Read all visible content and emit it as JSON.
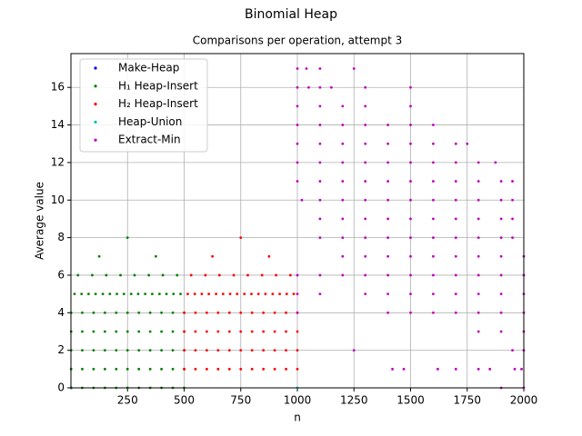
{
  "chart_data": {
    "type": "scatter",
    "title": "Binomial Heap",
    "subtitle": "Comparisons per operation, attempt 3",
    "xlabel": "n",
    "ylabel": "Average value",
    "xlim": [
      0,
      2000
    ],
    "ylim": [
      0,
      17.8
    ],
    "xticks": [
      250,
      500,
      750,
      1000,
      1250,
      1500,
      1750,
      2000
    ],
    "yticks": [
      0,
      2,
      4,
      6,
      8,
      10,
      12,
      14,
      16
    ],
    "grid": true,
    "legend": "upper left",
    "series": [
      {
        "name": "Make-Heap",
        "color": "#0000ff",
        "x": [
          1
        ],
        "values": [
          0
        ]
      },
      {
        "name": "H₁ Heap-Insert",
        "color": "#008000",
        "x": [
          1,
          50,
          100,
          150,
          200,
          250,
          300,
          350,
          400,
          450,
          500,
          1,
          50,
          100,
          150,
          200,
          250,
          300,
          350,
          400,
          450,
          500,
          1,
          50,
          100,
          150,
          200,
          250,
          300,
          350,
          400,
          450,
          500,
          1,
          50,
          100,
          150,
          200,
          250,
          300,
          350,
          400,
          450,
          500,
          1,
          50,
          100,
          150,
          200,
          250,
          300,
          350,
          400,
          450,
          500,
          16,
          47,
          78,
          109,
          141,
          172,
          203,
          234,
          266,
          297,
          328,
          359,
          391,
          422,
          453,
          484,
          31,
          94,
          156,
          219,
          281,
          344,
          406,
          469,
          125,
          375,
          250
        ],
        "values": [
          0,
          0,
          0,
          0,
          0,
          0,
          0,
          0,
          0,
          0,
          0,
          1,
          1,
          1,
          1,
          1,
          1,
          1,
          1,
          1,
          1,
          1,
          2,
          2,
          2,
          2,
          2,
          2,
          2,
          2,
          2,
          2,
          2,
          3,
          3,
          3,
          3,
          3,
          3,
          3,
          3,
          3,
          3,
          3,
          4,
          4,
          4,
          4,
          4,
          4,
          4,
          4,
          4,
          4,
          4,
          5,
          5,
          5,
          5,
          5,
          5,
          5,
          5,
          5,
          5,
          5,
          5,
          5,
          5,
          5,
          5,
          6,
          6,
          6,
          6,
          6,
          6,
          6,
          6,
          7,
          7,
          8
        ]
      },
      {
        "name": "H₂ Heap-Insert",
        "color": "#ff0000",
        "x": [
          501,
          550,
          600,
          650,
          700,
          750,
          800,
          850,
          900,
          950,
          1000,
          501,
          550,
          600,
          650,
          700,
          750,
          800,
          850,
          900,
          950,
          1000,
          501,
          550,
          600,
          650,
          700,
          750,
          800,
          850,
          900,
          950,
          1000,
          501,
          550,
          600,
          650,
          700,
          750,
          800,
          850,
          900,
          950,
          1000,
          516,
          547,
          578,
          609,
          641,
          672,
          703,
          734,
          766,
          797,
          828,
          859,
          891,
          922,
          953,
          984,
          531,
          594,
          656,
          719,
          781,
          844,
          906,
          969,
          625,
          875,
          750
        ],
        "values": [
          1,
          1,
          1,
          1,
          1,
          1,
          1,
          1,
          1,
          1,
          1,
          2,
          2,
          2,
          2,
          2,
          2,
          2,
          2,
          2,
          2,
          2,
          3,
          3,
          3,
          3,
          3,
          3,
          3,
          3,
          3,
          3,
          3,
          4,
          4,
          4,
          4,
          4,
          4,
          4,
          4,
          4,
          4,
          4,
          5,
          5,
          5,
          5,
          5,
          5,
          5,
          5,
          5,
          5,
          5,
          5,
          5,
          5,
          5,
          5,
          6,
          6,
          6,
          6,
          6,
          6,
          6,
          6,
          7,
          7,
          8
        ]
      },
      {
        "name": "Heap-Union",
        "color": "#00bfbf",
        "x": [
          1000
        ],
        "values": [
          0
        ]
      },
      {
        "name": "Extract-Min",
        "color": "#bf00bf",
        "x": [
          1000,
          1040,
          1100,
          1250,
          1000,
          1050,
          1100,
          1150,
          1300,
          1500,
          1000,
          1100,
          1200,
          1300,
          1500,
          1000,
          1100,
          1200,
          1300,
          1400,
          1500,
          1600,
          1000,
          1100,
          1200,
          1300,
          1400,
          1500,
          1600,
          1700,
          1750,
          1000,
          1100,
          1200,
          1300,
          1400,
          1500,
          1600,
          1700,
          1800,
          1875,
          1000,
          1100,
          1200,
          1300,
          1400,
          1500,
          1600,
          1700,
          1800,
          1900,
          1950,
          1020,
          1100,
          1200,
          1300,
          1400,
          1500,
          1600,
          1700,
          1800,
          1900,
          1950,
          1100,
          1200,
          1300,
          1400,
          1500,
          1600,
          1700,
          1800,
          1900,
          1950,
          1100,
          1200,
          1300,
          1400,
          1500,
          1600,
          1700,
          1800,
          1900,
          1950,
          1200,
          1300,
          1400,
          1500,
          1600,
          1700,
          1800,
          1900,
          2000,
          1000,
          1100,
          1200,
          1300,
          1400,
          1500,
          1600,
          1700,
          1800,
          1900,
          2000,
          1000,
          1100,
          1300,
          1400,
          1500,
          1600,
          1700,
          1800,
          1900,
          2000,
          1000,
          1400,
          1500,
          1600,
          1700,
          1800,
          1900,
          2000,
          1800,
          1900,
          2000,
          1250,
          1950,
          2000,
          1420,
          1470,
          1620,
          1700,
          1800,
          1850,
          1960,
          1990,
          1900,
          2000
        ],
        "values": [
          17,
          17,
          17,
          17,
          16,
          16,
          16,
          16,
          16,
          16,
          15,
          15,
          15,
          15,
          15,
          14,
          14,
          14,
          14,
          14,
          14,
          14,
          13,
          13,
          13,
          13,
          13,
          13,
          13,
          13,
          13,
          12,
          12,
          12,
          12,
          12,
          12,
          12,
          12,
          12,
          12,
          11,
          11,
          11,
          11,
          11,
          11,
          11,
          11,
          11,
          11,
          11,
          10,
          10,
          10,
          10,
          10,
          10,
          10,
          10,
          10,
          10,
          10,
          9,
          9,
          9,
          9,
          9,
          9,
          9,
          9,
          9,
          9,
          8,
          8,
          8,
          8,
          8,
          8,
          8,
          8,
          8,
          8,
          7,
          7,
          7,
          7,
          7,
          7,
          7,
          7,
          7,
          6,
          6,
          6,
          6,
          6,
          6,
          6,
          6,
          6,
          6,
          6,
          5,
          5,
          5,
          5,
          5,
          5,
          5,
          5,
          5,
          5,
          4,
          4,
          4,
          4,
          4,
          4,
          4,
          4,
          3,
          3,
          3,
          2,
          2,
          2,
          1,
          1,
          1,
          1,
          1,
          1,
          1,
          1,
          0,
          0
        ]
      }
    ]
  }
}
